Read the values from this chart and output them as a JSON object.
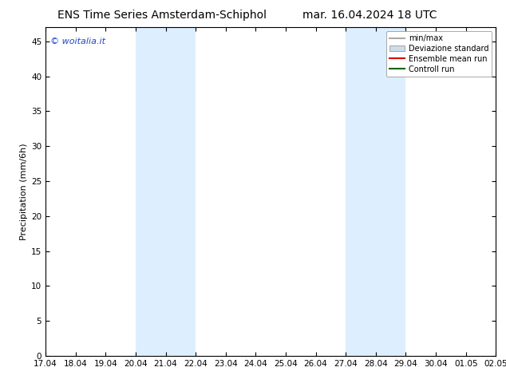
{
  "title_left": "ENS Time Series Amsterdam-Schiphol",
  "title_right": "mar. 16.04.2024 18 UTC",
  "ylabel": "Precipitation (mm/6h)",
  "watermark": "© woitalia.it",
  "x_labels": [
    "17.04",
    "18.04",
    "19.04",
    "20.04",
    "21.04",
    "22.04",
    "23.04",
    "24.04",
    "25.04",
    "26.04",
    "27.04",
    "28.04",
    "29.04",
    "30.04",
    "01.05",
    "02.05"
  ],
  "ylim": [
    0,
    47
  ],
  "yticks": [
    0,
    5,
    10,
    15,
    20,
    25,
    30,
    35,
    40,
    45
  ],
  "shaded_regions": [
    {
      "xstart": 3,
      "xend": 5,
      "color": "#ddeeff"
    },
    {
      "xstart": 10,
      "xend": 12,
      "color": "#ddeeff"
    }
  ],
  "legend_entries": [
    {
      "label": "min/max",
      "color": "#aaaaaa",
      "style": "hline"
    },
    {
      "label": "Deviazione standard",
      "color": "#ccdde8",
      "style": "box"
    },
    {
      "label": "Ensemble mean run",
      "color": "#dd0000",
      "style": "line"
    },
    {
      "label": "Controll run",
      "color": "#006600",
      "style": "line"
    }
  ],
  "background_color": "#ffffff",
  "plot_bg_color": "#ffffff",
  "title_fontsize": 10,
  "axis_fontsize": 7.5,
  "ylabel_fontsize": 8,
  "watermark_color": "#2244cc",
  "n_xticks": 16
}
